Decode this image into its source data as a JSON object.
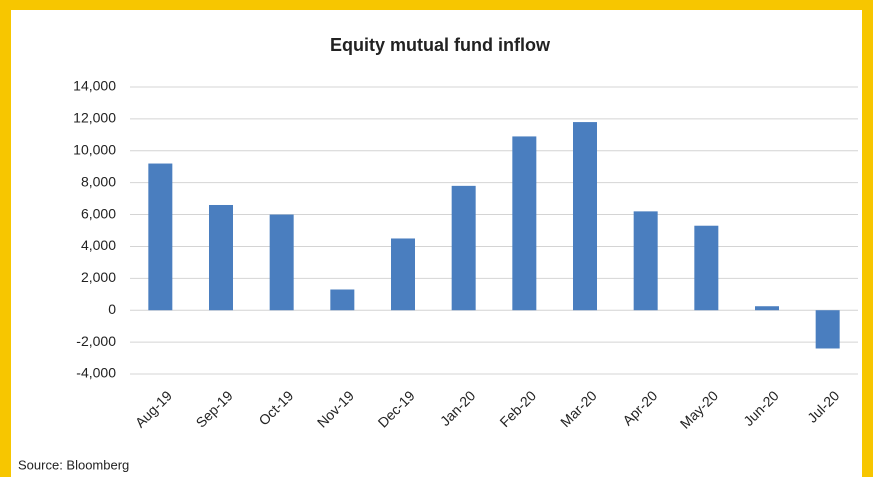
{
  "chart_data": {
    "type": "bar",
    "title": "Equity mutual fund inflow",
    "source": "Source: Bloomberg",
    "categories": [
      "Aug-19",
      "Sep-19",
      "Oct-19",
      "Nov-19",
      "Dec-19",
      "Jan-20",
      "Feb-20",
      "Mar-20",
      "Apr-20",
      "May-20",
      "Jun-20",
      "Jul-20"
    ],
    "values": [
      9200,
      6600,
      6000,
      1300,
      4500,
      7800,
      10900,
      11800,
      6200,
      5300,
      250,
      -2400
    ],
    "color": "#4a7ebf",
    "ylim": [
      -4000,
      14000
    ],
    "yticks": [
      {
        "value": -4000,
        "label": "-4,000"
      },
      {
        "value": -2000,
        "label": "-2,000"
      },
      0,
      {
        "value": 2000,
        "label": "2,000"
      },
      {
        "value": 4000,
        "label": "4,000"
      },
      {
        "value": 6000,
        "label": "6,000"
      },
      {
        "value": 8000,
        "label": "8,000"
      },
      {
        "value": 10000,
        "label": "10,000"
      },
      {
        "value": 12000,
        "label": "12,000"
      },
      {
        "value": 14000,
        "label": "14,000"
      }
    ],
    "grid": true
  }
}
